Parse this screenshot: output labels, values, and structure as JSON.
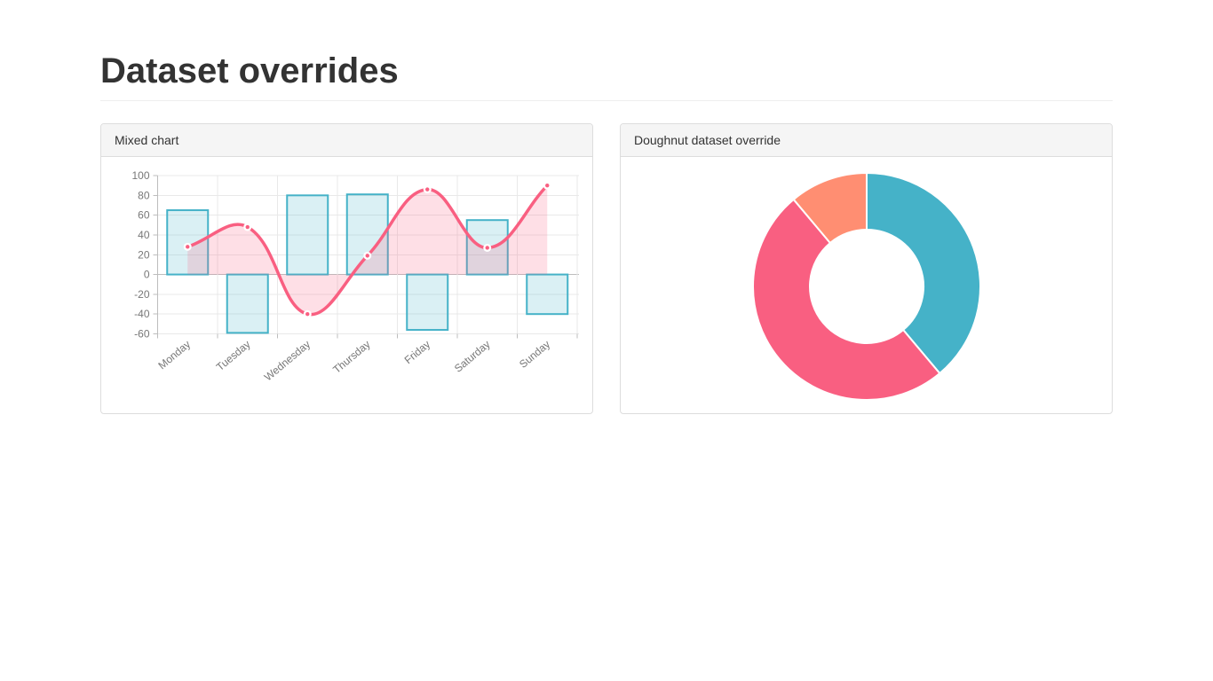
{
  "page": {
    "title": "Dataset overrides"
  },
  "panels": [
    {
      "id": "mixed",
      "title": "Mixed chart"
    },
    {
      "id": "doughnut",
      "title": "Doughnut dataset override"
    }
  ],
  "colors": {
    "teal": "#45b2c8",
    "teal_fill": "rgba(69,178,200,0.2)",
    "pink": "#f95f81",
    "pink_fill": "rgba(249,95,129,0.2)",
    "orange": "#ff8e72",
    "grid": "#e9e9e9",
    "axis": "#bdbdbd",
    "tick_text": "#777777",
    "panel_border": "#dddddd",
    "panel_header_bg": "#f5f5f5"
  },
  "chart_data": [
    {
      "panel": "mixed",
      "type": "bar",
      "subtype": "mixed-bar-line",
      "categories": [
        "Monday",
        "Tuesday",
        "Wednesday",
        "Thursday",
        "Friday",
        "Saturday",
        "Sunday"
      ],
      "series": [
        {
          "name": "bars",
          "type": "bar",
          "values": [
            65,
            -59,
            80,
            81,
            -56,
            55,
            -40
          ],
          "color": "#45b2c8",
          "fill": "rgba(69,178,200,0.2)"
        },
        {
          "name": "line",
          "type": "line",
          "values": [
            28,
            48,
            -40,
            19,
            86,
            27,
            90
          ],
          "color": "#f95f81",
          "fill": "rgba(249,95,129,0.2)",
          "tension": 0.4
        }
      ],
      "title": "",
      "xlabel": "",
      "ylabel": "",
      "ylim": [
        -60,
        100
      ],
      "ytick_step": 20,
      "grid": true,
      "legend": false,
      "xlabel_rotation_deg": -40
    },
    {
      "panel": "doughnut",
      "type": "pie",
      "subtype": "doughnut",
      "values": [
        350,
        450,
        100
      ],
      "segment_colors": [
        "#45b2c8",
        "#f95f81",
        "#ff8e72"
      ],
      "cutout_ratio": 0.5,
      "start_angle_deg": 0,
      "title": "",
      "legend": false
    }
  ]
}
